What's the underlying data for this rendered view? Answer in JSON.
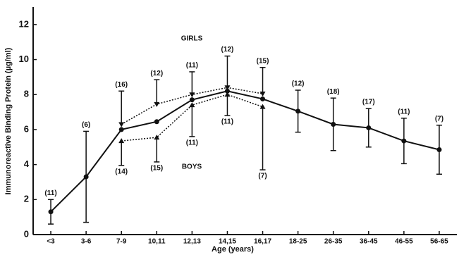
{
  "chart_data": {
    "type": "line",
    "y_label": "Immunoreactive Binding Protein (µg/ml)",
    "x_label": "Age (years)",
    "categories": [
      "<3",
      "3-6",
      "7-9",
      "10,11",
      "12,13",
      "14,15",
      "16,17",
      "18-25",
      "26-35",
      "36-45",
      "46-55",
      "56-65"
    ],
    "ylim": [
      0,
      13
    ],
    "yticks": [
      0,
      2,
      4,
      6,
      8,
      10,
      12
    ],
    "series": [
      {
        "color": "#111111",
        "line_style": "solid",
        "marker": "circle",
        "error_direction": "both",
        "label_position": "above",
        "values": [
          1.3,
          3.3,
          6.0,
          6.45,
          7.7,
          8.2,
          7.75,
          7.05,
          6.3,
          6.1,
          5.35,
          4.85
        ],
        "errors": [
          0.7,
          2.6,
          null,
          null,
          null,
          null,
          null,
          1.2,
          1.5,
          1.1,
          1.3,
          1.4
        ],
        "n_labels": [
          "(11)",
          "(6)",
          null,
          null,
          null,
          null,
          null,
          "(12)",
          "(18)",
          "(17)",
          "(11)",
          "(7)"
        ]
      },
      {
        "name": "GIRLS",
        "color": "#111111",
        "line_style": "dotted",
        "marker": "triangle-down",
        "error_direction": "up",
        "label_position": "above",
        "values": [
          null,
          null,
          6.3,
          7.45,
          8.0,
          8.4,
          8.05,
          null,
          null,
          null,
          null,
          null
        ],
        "errors": [
          null,
          null,
          1.9,
          1.4,
          1.3,
          1.8,
          1.5,
          null,
          null,
          null,
          null,
          null
        ],
        "n_labels": [
          null,
          null,
          "(16)",
          "(12)",
          "(11)",
          "(12)",
          "(15)",
          null,
          null,
          null,
          null,
          null
        ]
      },
      {
        "name": "BOYS",
        "color": "#111111",
        "line_style": "dotted",
        "marker": "triangle-up",
        "error_direction": "down",
        "label_position": "below",
        "values": [
          null,
          null,
          5.35,
          5.55,
          7.4,
          8.0,
          7.3,
          null,
          null,
          null,
          null,
          null
        ],
        "errors": [
          null,
          null,
          1.4,
          1.4,
          1.8,
          1.2,
          3.6,
          null,
          null,
          null,
          null,
          null
        ],
        "n_labels": [
          null,
          null,
          "(14)",
          "(15)",
          "(11)",
          "(11)",
          "(7)",
          null,
          null,
          null,
          null,
          null
        ]
      }
    ]
  }
}
